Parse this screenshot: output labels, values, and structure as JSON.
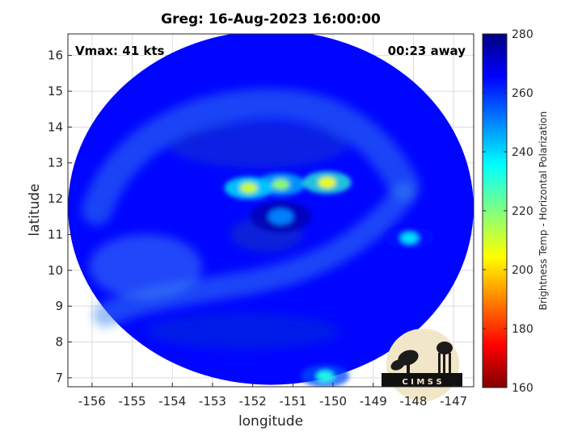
{
  "chart_data": {
    "type": "heatmap",
    "title": "Greg: 16-Aug-2023 16:00:00",
    "xlabel": "longitude",
    "ylabel": "latitude",
    "xlim": [
      -156.6,
      -146.5
    ],
    "ylim": [
      6.75,
      16.6
    ],
    "x_ticks": [
      "-156",
      "-155",
      "-154",
      "-153",
      "-152",
      "-151",
      "-150",
      "-149",
      "-148",
      "-147"
    ],
    "y_ticks": [
      "7",
      "8",
      "9",
      "10",
      "11",
      "12",
      "13",
      "14",
      "15",
      "16"
    ],
    "grid": true,
    "annotations": {
      "vmax": "Vmax: 41 kts",
      "time_offset": "00:23 away"
    },
    "colorbar": {
      "label": "Brightness Temp - Horizontal Polarization",
      "range": [
        160,
        280
      ],
      "ticks": [
        "160",
        "180",
        "200",
        "220",
        "240",
        "260",
        "280"
      ],
      "colormap": "jet"
    },
    "swath": {
      "center": [
        -151.55,
        11.75
      ],
      "radius_deg": 5.0,
      "background_value": 265
    },
    "features": [
      {
        "name": "western convective cluster",
        "lon": -152.1,
        "lat": 12.3,
        "min_value": 210
      },
      {
        "name": "central cluster",
        "lon": -151.3,
        "lat": 12.4,
        "min_value": 218
      },
      {
        "name": "eastern cluster",
        "lon": -150.15,
        "lat": 12.45,
        "min_value": 205
      },
      {
        "name": "eye region",
        "lon": -151.3,
        "lat": 11.5,
        "min_value": 250
      },
      {
        "name": "southern cell",
        "lon": -150.2,
        "lat": 7.05,
        "min_value": 232
      },
      {
        "name": "eastern cells",
        "lon": -148.1,
        "lat": 10.9,
        "min_value": 238
      }
    ],
    "logo_text": "C I M S S"
  }
}
